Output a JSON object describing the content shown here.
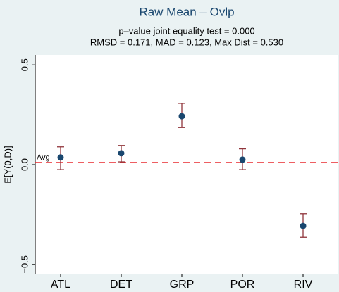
{
  "chart_data": {
    "type": "errorbar",
    "title": "Raw Mean – Ovlp",
    "subtitle": [
      "p–value joint equality test = 0.000",
      "RMSD = 0.171, MAD = 0.123, Max Dist = 0.530"
    ],
    "y_label": "E[Y(0,D)]",
    "categories": [
      "ATL",
      "DET",
      "GRP",
      "POR",
      "RIV"
    ],
    "series": [
      {
        "color": "#1a476f",
        "bar_color": "#90353b",
        "values": [
          0.036,
          0.057,
          0.243,
          0.025,
          -0.307
        ],
        "ci_low": [
          -0.025,
          0.014,
          0.186,
          -0.025,
          -0.364
        ],
        "ci_high": [
          0.089,
          0.096,
          0.307,
          0.079,
          -0.246
        ]
      }
    ],
    "reference_line": {
      "value": 0.011,
      "label": "Avg",
      "color": "#e8292e"
    },
    "ylim": [
      -0.55,
      0.55
    ],
    "yticks": [
      {
        "value": -0.5,
        "label": "−0.5"
      },
      {
        "value": 0,
        "label": "0.0"
      },
      0.5
    ],
    "grid": false
  }
}
